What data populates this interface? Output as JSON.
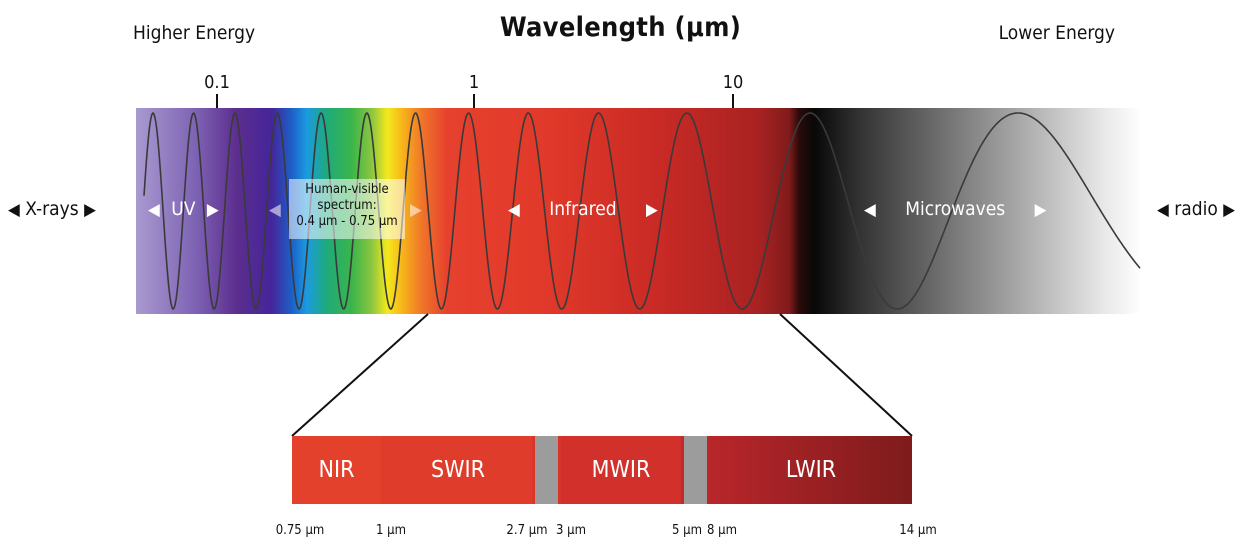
{
  "title": "Wavelength (µm)",
  "higher_energy": "Higher Energy",
  "lower_energy": "Lower Energy",
  "scale_ticks": [
    "0.1",
    "1",
    "10"
  ],
  "outside_left": "X-rays",
  "outside_right": "radio",
  "bands": {
    "uv": "UV",
    "visible": {
      "line1": "Human-visible",
      "line2": "spectrum:",
      "line3": "0.4 µm - 0.75 µm"
    },
    "infrared": "Infrared",
    "microwaves": "Microwaves"
  },
  "ir_subbands": [
    "NIR",
    "SWIR",
    "MWIR",
    "LWIR"
  ],
  "ir_ticks": [
    "0.75 µm",
    "1 µm",
    "2.7 µm",
    "3 µm",
    "5 µm",
    "8 µm",
    "14 µm"
  ],
  "colors": {
    "uv": "#7a5fb0",
    "blue": "#1f7fd6",
    "green": "#25a84a",
    "yellow": "#f5e616",
    "red": "#e23a2a",
    "dark_red": "#8e1c1c",
    "black": "#0a0a0a",
    "ir_gap": "#9c9c9c"
  }
}
